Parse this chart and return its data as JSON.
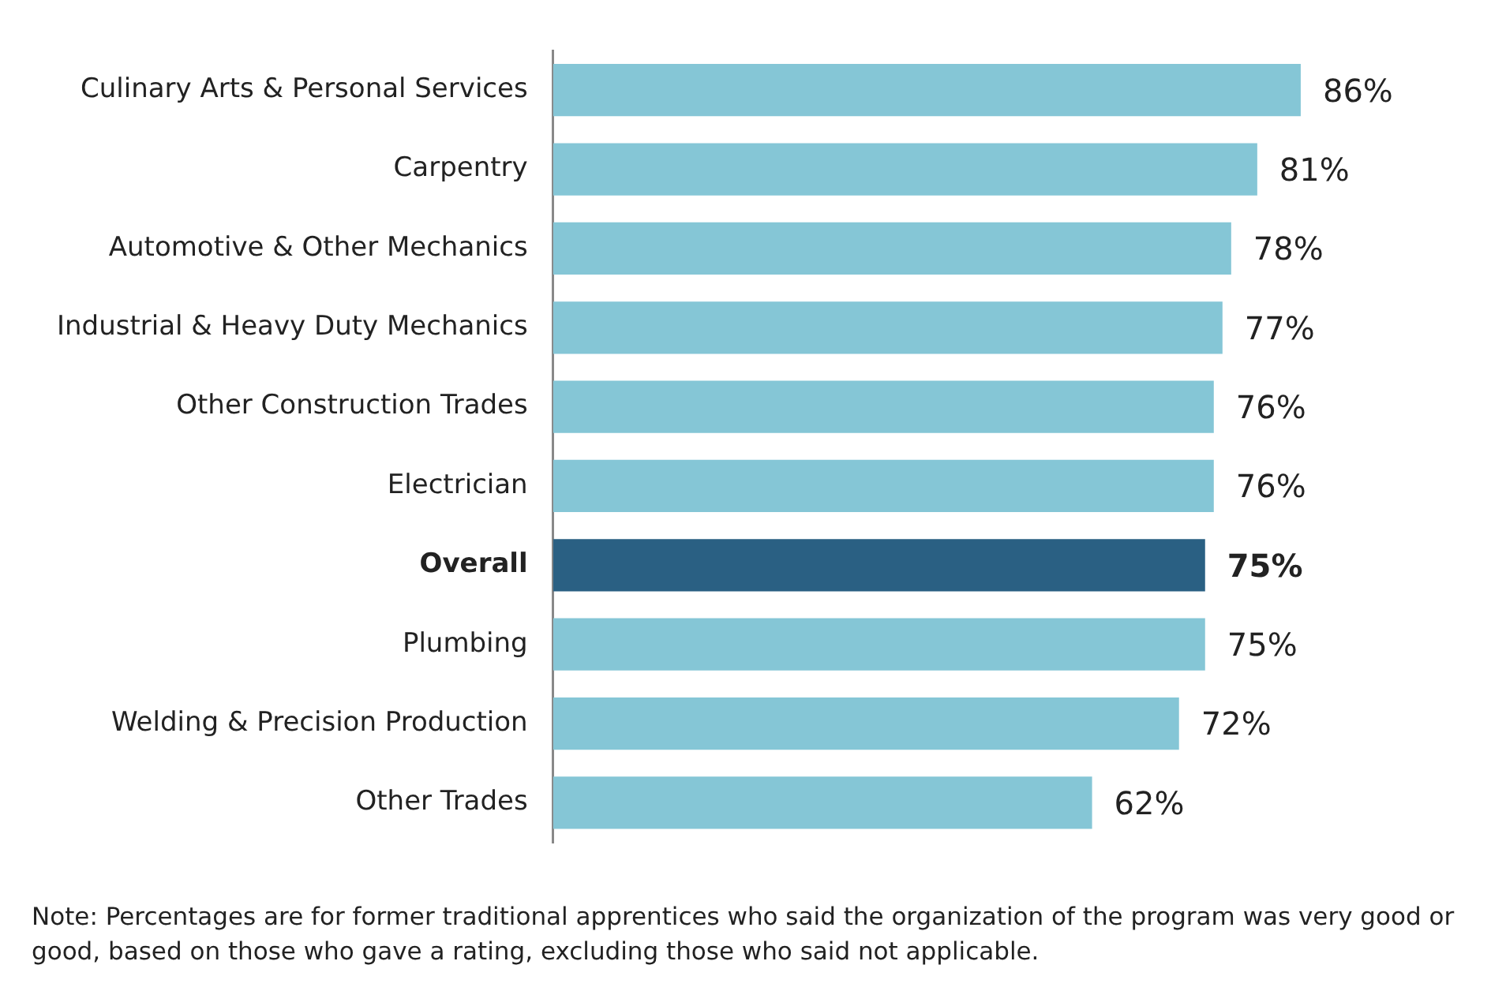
{
  "chart_data": {
    "type": "bar",
    "orientation": "horizontal",
    "categories": [
      "Culinary Arts & Personal Services",
      "Carpentry",
      "Automotive & Other Mechanics",
      "Industrial & Heavy Duty Mechanics",
      "Other Construction Trades",
      "Electrician",
      "Overall",
      "Plumbing",
      "Welding & Precision Production",
      "Other Trades"
    ],
    "values": [
      86,
      81,
      78,
      77,
      76,
      76,
      75,
      75,
      72,
      62
    ],
    "value_labels": [
      "86%",
      "81%",
      "78%",
      "77%",
      "76%",
      "76%",
      "75%",
      "75%",
      "72%",
      "62%"
    ],
    "colors": [
      "#85c6d6",
      "#85c6d6",
      "#85c6d6",
      "#85c6d6",
      "#85c6d6",
      "#85c6d6",
      "#2a6083",
      "#85c6d6",
      "#85c6d6",
      "#85c6d6"
    ],
    "tick_labels": "y",
    "annotations": [
      "Note: Percentages are for former traditional apprentices who said the organization of the program was very good or good, based on those who gave a rating, excluding those who said not applicable."
    ]
  }
}
